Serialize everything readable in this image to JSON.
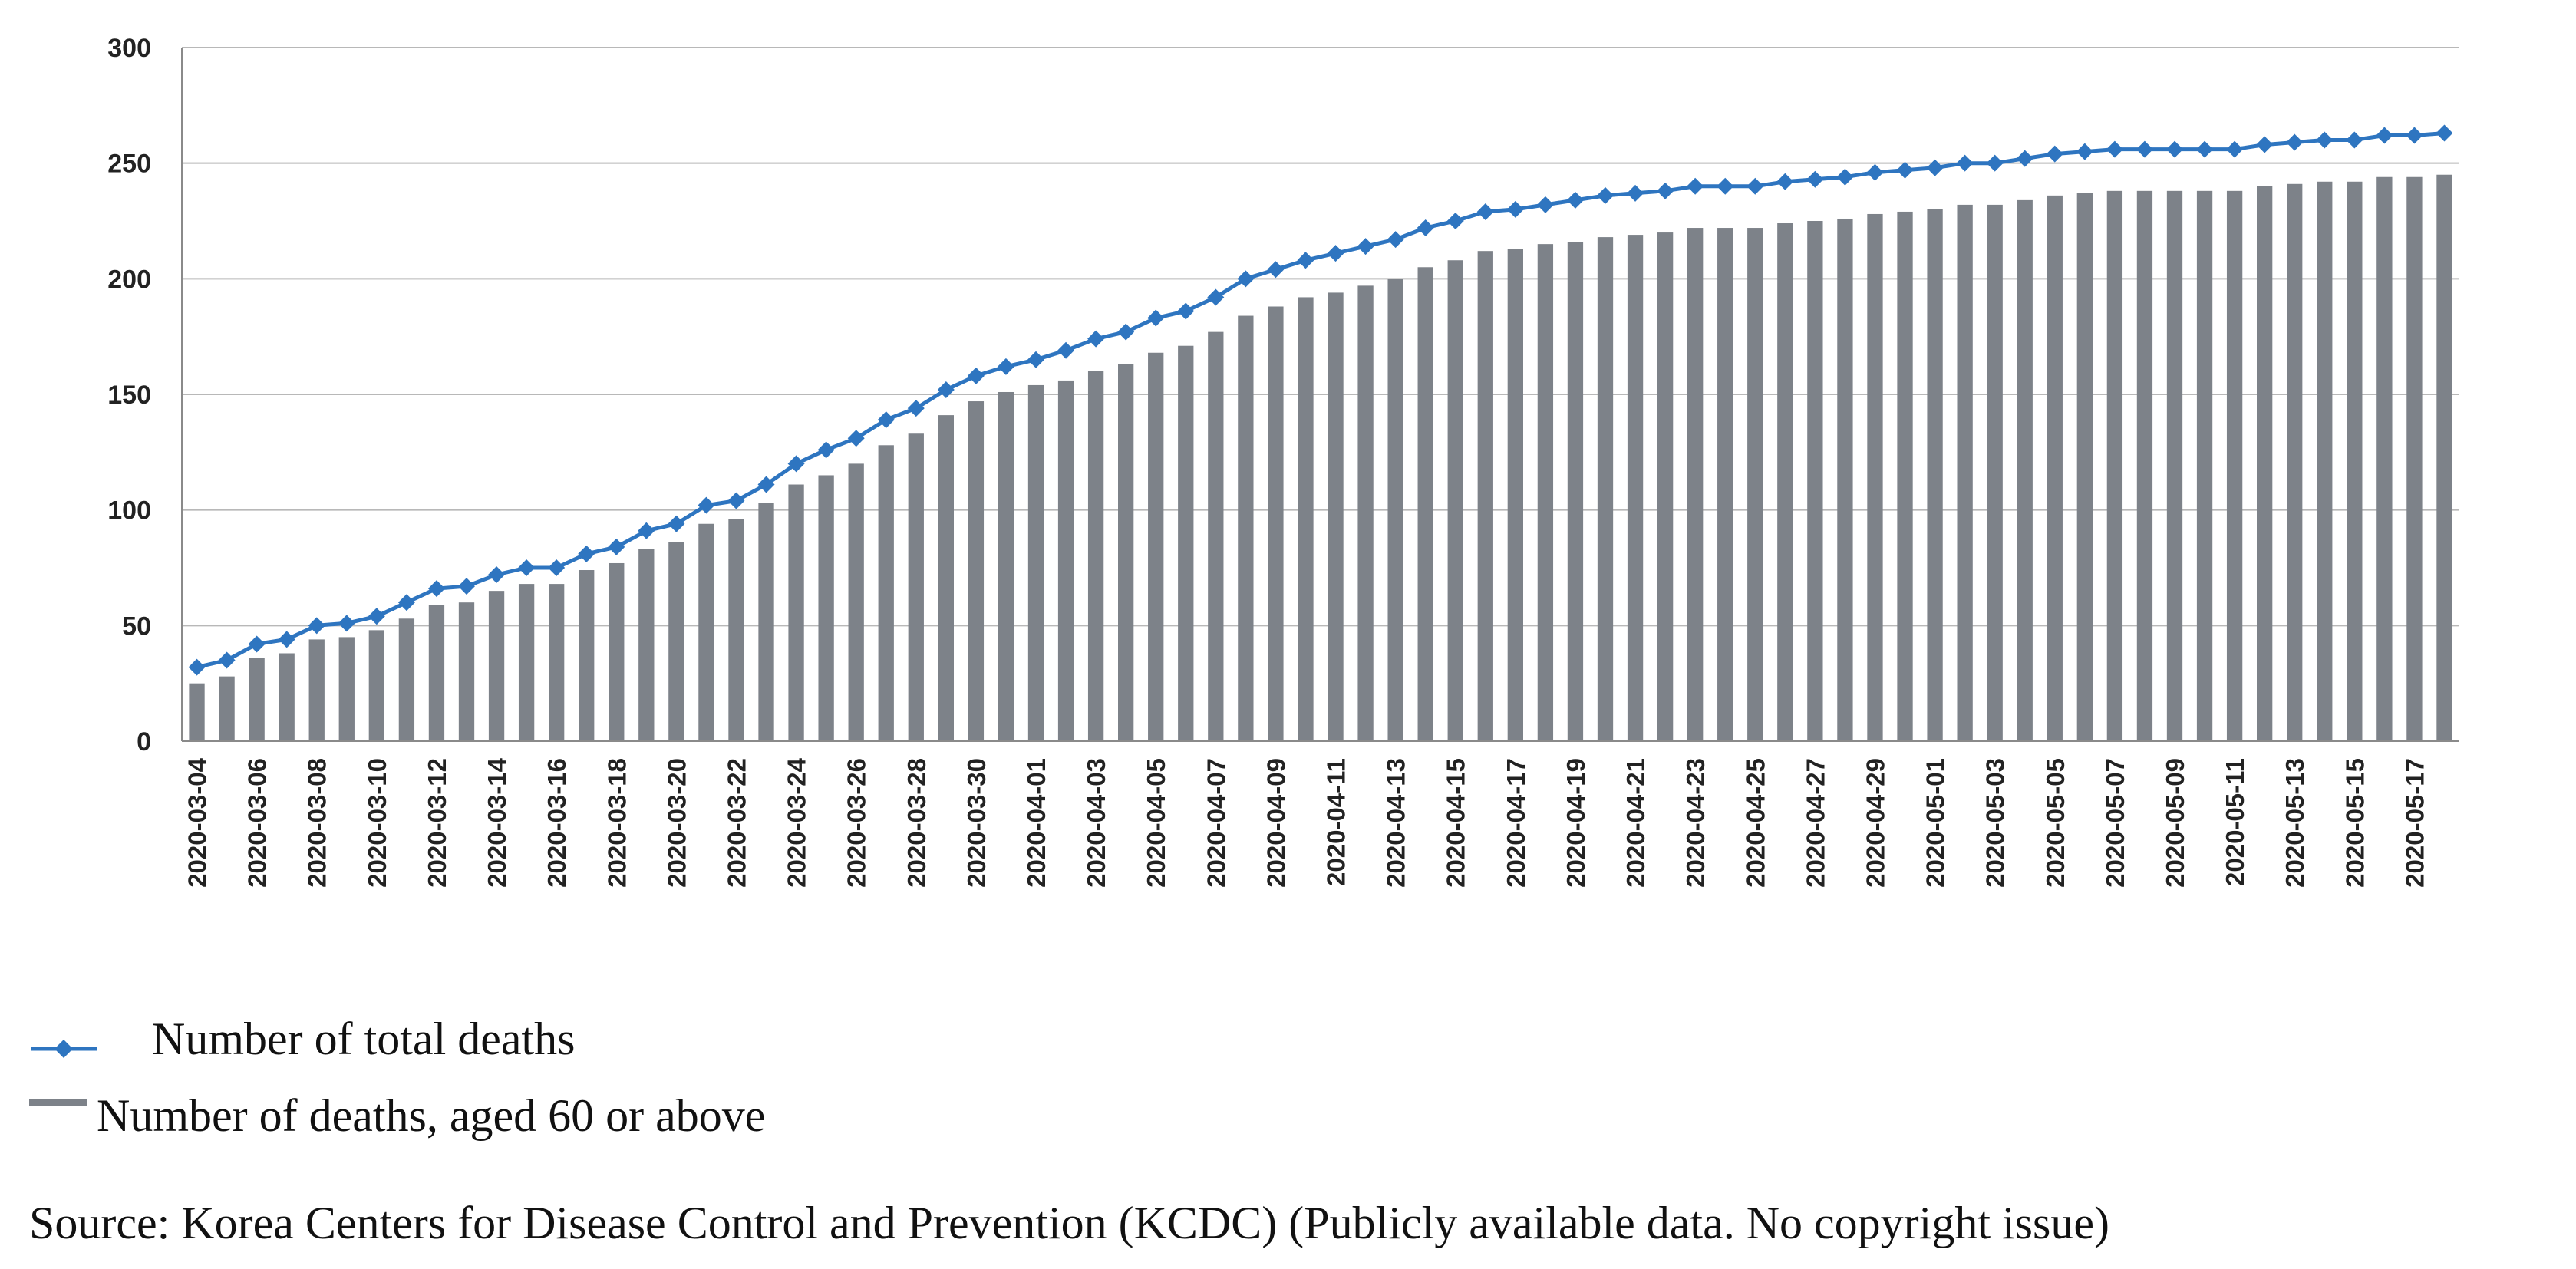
{
  "chart_data": {
    "type": "bar",
    "title": "",
    "xlabel": "",
    "ylabel": "",
    "ylim": [
      0,
      300
    ],
    "yticks": [
      0,
      50,
      100,
      150,
      200,
      250,
      300
    ],
    "grid": true,
    "categories": [
      "2020-03-04",
      "2020-03-05",
      "2020-03-06",
      "2020-03-07",
      "2020-03-08",
      "2020-03-09",
      "2020-03-10",
      "2020-03-11",
      "2020-03-12",
      "2020-03-13",
      "2020-03-14",
      "2020-03-15",
      "2020-03-16",
      "2020-03-17",
      "2020-03-18",
      "2020-03-19",
      "2020-03-20",
      "2020-03-21",
      "2020-03-22",
      "2020-03-23",
      "2020-03-24",
      "2020-03-25",
      "2020-03-26",
      "2020-03-27",
      "2020-03-28",
      "2020-03-29",
      "2020-03-30",
      "2020-03-31",
      "2020-04-01",
      "2020-04-02",
      "2020-04-03",
      "2020-04-04",
      "2020-04-05",
      "2020-04-06",
      "2020-04-07",
      "2020-04-08",
      "2020-04-09",
      "2020-04-10",
      "2020-04-11",
      "2020-04-12",
      "2020-04-13",
      "2020-04-14",
      "2020-04-15",
      "2020-04-16",
      "2020-04-17",
      "2020-04-18",
      "2020-04-19",
      "2020-04-20",
      "2020-04-21",
      "2020-04-22",
      "2020-04-23",
      "2020-04-24",
      "2020-04-25",
      "2020-04-26",
      "2020-04-27",
      "2020-04-28",
      "2020-04-29",
      "2020-04-30",
      "2020-05-01",
      "2020-05-02",
      "2020-05-03",
      "2020-05-04",
      "2020-05-05",
      "2020-05-06",
      "2020-05-07",
      "2020-05-08",
      "2020-05-09",
      "2020-05-10",
      "2020-05-11",
      "2020-05-12",
      "2020-05-13",
      "2020-05-14",
      "2020-05-15",
      "2020-05-16",
      "2020-05-17",
      "2020-05-18"
    ],
    "x_tick_labels": [
      "2020-03-04",
      "2020-03-06",
      "2020-03-08",
      "2020-03-10",
      "2020-03-12",
      "2020-03-14",
      "2020-03-16",
      "2020-03-18",
      "2020-03-20",
      "2020-03-22",
      "2020-03-24",
      "2020-03-26",
      "2020-03-28",
      "2020-03-30",
      "2020-04-01",
      "2020-04-03",
      "2020-04-05",
      "2020-04-07",
      "2020-04-09",
      "2020-04-11",
      "2020-04-13",
      "2020-04-15",
      "2020-04-17",
      "2020-04-19",
      "2020-04-21",
      "2020-04-23",
      "2020-04-25",
      "2020-04-27",
      "2020-04-29",
      "2020-05-01",
      "2020-05-03",
      "2020-05-05",
      "2020-05-07",
      "2020-05-09",
      "2020-05-11",
      "2020-05-13",
      "2020-05-15",
      "2020-05-17"
    ],
    "series": [
      {
        "name": "Number of total deaths",
        "kind": "line",
        "color": "#2e75c0",
        "values": [
          32,
          35,
          42,
          44,
          50,
          51,
          54,
          60,
          66,
          67,
          72,
          75,
          75,
          81,
          84,
          91,
          94,
          102,
          104,
          111,
          120,
          126,
          131,
          139,
          144,
          152,
          158,
          162,
          165,
          169,
          174,
          177,
          183,
          186,
          192,
          200,
          204,
          208,
          211,
          214,
          217,
          222,
          225,
          229,
          230,
          232,
          234,
          236,
          237,
          238,
          240,
          240,
          240,
          242,
          243,
          244,
          246,
          247,
          248,
          250,
          250,
          252,
          254,
          255,
          256,
          256,
          256,
          256,
          256,
          258,
          259,
          260,
          260,
          262,
          262,
          263
        ]
      },
      {
        "name": "Number of deaths, aged 60 or above",
        "kind": "bar",
        "color": "#7d8289",
        "values": [
          25,
          28,
          36,
          38,
          44,
          45,
          48,
          53,
          59,
          60,
          65,
          68,
          68,
          74,
          77,
          83,
          86,
          94,
          96,
          103,
          111,
          115,
          120,
          128,
          133,
          141,
          147,
          151,
          154,
          156,
          160,
          163,
          168,
          171,
          177,
          184,
          188,
          192,
          194,
          197,
          200,
          205,
          208,
          212,
          213,
          215,
          216,
          218,
          219,
          220,
          222,
          222,
          222,
          224,
          225,
          226,
          228,
          229,
          230,
          232,
          232,
          234,
          236,
          237,
          238,
          238,
          238,
          238,
          238,
          240,
          241,
          242,
          242,
          244,
          244,
          245
        ]
      }
    ]
  },
  "legend": {
    "line_label": "Number of total deaths",
    "bar_label": "Number of deaths, aged 60 or above"
  },
  "source_text": "Source: Korea Centers for Disease Control and Prevention (KCDC) (Publicly available data. No copyright issue)"
}
